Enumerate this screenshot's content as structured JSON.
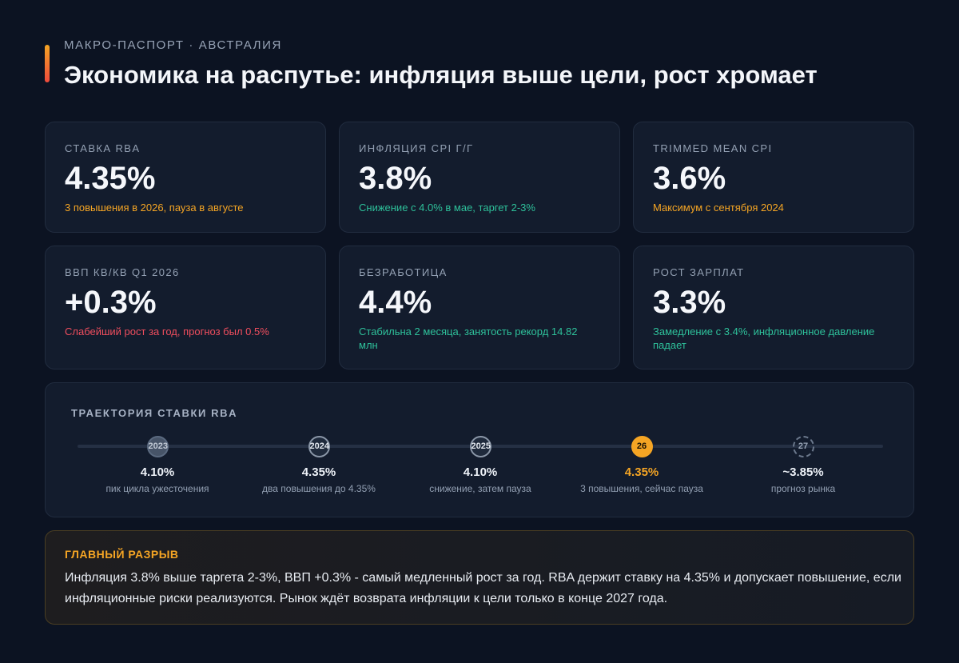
{
  "header": {
    "eyebrow": "МАКРО-ПАСПОРТ · АВСТРАЛИЯ",
    "title": "Экономика на распутье: инфляция выше цели, рост хромает"
  },
  "cards": [
    {
      "label": "СТАВКА RBA",
      "value": "4.35%",
      "note": "3 повышения в 2026, пауза в августе",
      "tone": "orange"
    },
    {
      "label": "ИНФЛЯЦИЯ CPI Г/Г",
      "value": "3.8%",
      "note": "Снижение с 4.0% в мае, таргет 2-3%",
      "tone": "green"
    },
    {
      "label": "TRIMMED MEAN CPI",
      "value": "3.6%",
      "note": "Максимум с сентября 2024",
      "tone": "orange"
    },
    {
      "label": "ВВП КВ/КВ Q1 2026",
      "value": "+0.3%",
      "note": "Слабейший рост за год, прогноз был 0.5%",
      "tone": "red"
    },
    {
      "label": "БЕЗРАБОТИЦА",
      "value": "4.4%",
      "note": "Стабильна 2 месяца, занятость рекорд 14.82 млн",
      "tone": "green"
    },
    {
      "label": "РОСТ ЗАРПЛАТ",
      "value": "3.3%",
      "note": "Замедление с 3.4%, инфляционное давление падает",
      "tone": "green"
    }
  ],
  "timeline": {
    "title": "ТРАЕКТОРИЯ СТАВКИ RBA",
    "stops": [
      {
        "year": "2023",
        "value": "4.10%",
        "desc": "пик цикла ужесточения",
        "state": "past1"
      },
      {
        "year": "2024",
        "value": "4.35%",
        "desc": "два повышения до 4.35%",
        "state": "past2"
      },
      {
        "year": "2025",
        "value": "4.10%",
        "desc": "снижение, затем пауза",
        "state": "past2"
      },
      {
        "year": "26",
        "value": "4.35%",
        "desc": "3 повышения, сейчас пауза",
        "state": "current"
      },
      {
        "year": "27",
        "value": "~3.85%",
        "desc": "прогноз рынка",
        "state": "forecast"
      }
    ]
  },
  "callout": {
    "title": "ГЛАВНЫЙ РАЗРЫВ",
    "text": "Инфляция 3.8% выше таргета 2-3%, ВВП +0.3% - самый медленный рост за год. RBA держит ставку на 4.35% и допускает повышение, если инфляционные риски реализуются. Рынок ждёт возврата инфляции к цели только в конце 2027 года."
  },
  "colors": {
    "background": "#0c1322",
    "card": "#131c2d",
    "accent_orange": "#f5a524",
    "accent_green": "#2ec09a",
    "accent_red": "#f04e5e"
  }
}
